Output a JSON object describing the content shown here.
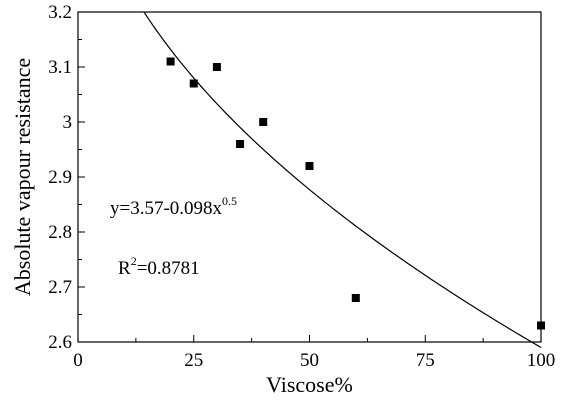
{
  "chart_data": {
    "type": "scatter",
    "title": "",
    "xlabel": "Viscose%",
    "ylabel": "Absolute vapour resistance",
    "xlim": [
      0,
      100
    ],
    "ylim": [
      2.6,
      3.2
    ],
    "x_ticks": [
      0,
      25,
      50,
      75,
      100
    ],
    "x_tick_labels": [
      "0",
      "25",
      "50",
      "75",
      "100"
    ],
    "y_ticks": [
      2.6,
      2.7,
      2.8,
      2.9,
      3.0,
      3.1,
      3.2
    ],
    "y_tick_labels": [
      "2.6",
      "2.7",
      "2.8",
      "2.9",
      "3",
      "3.1",
      "3.2"
    ],
    "grid": false,
    "series": [
      {
        "marker": "square",
        "x": [
          20,
          25,
          30,
          35,
          40,
          50,
          60,
          100
        ],
        "y": [
          3.11,
          3.07,
          3.1,
          2.96,
          3.0,
          2.92,
          2.68,
          2.63
        ]
      }
    ],
    "fit": {
      "intercept": 3.57,
      "coefficient": -0.098,
      "exponent": 0.5
    },
    "annotations": {
      "equation_main": "y=3.57-0.098x",
      "equation_exponent": "0.5",
      "r2_prefix": "R",
      "r2_exponent": "2",
      "r2_value": "=0.8781"
    }
  }
}
